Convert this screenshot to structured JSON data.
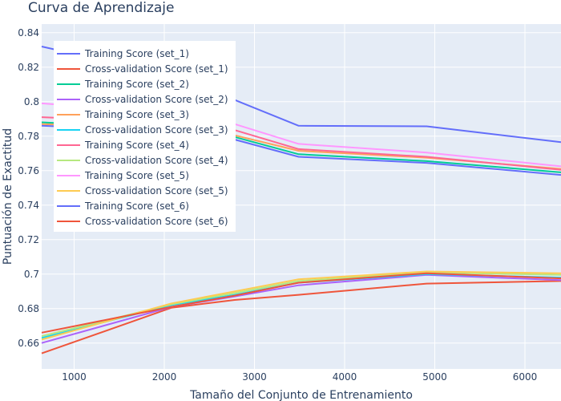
{
  "chart_data": {
    "type": "line",
    "title": "Curva de Aprendizaje",
    "xlabel": "Tamaño del Conjunto de Entrenamiento",
    "ylabel": "Puntuación de Exactitud",
    "xlim": [
      640,
      6400
    ],
    "ylim": [
      0.645,
      0.845
    ],
    "x_ticks": [
      1000,
      2000,
      3000,
      4000,
      5000,
      6000
    ],
    "x_tick_labels": [
      "1000",
      "2000",
      "3000",
      "4000",
      "5000",
      "6000"
    ],
    "y_ticks": [
      0.66,
      0.68,
      0.7,
      0.72,
      0.74,
      0.76,
      0.78,
      0.8,
      0.82,
      0.84
    ],
    "y_tick_labels": [
      "0.66",
      "0.68",
      "0.7",
      "0.72",
      "0.74",
      "0.76",
      "0.78",
      "0.8",
      "0.82",
      "0.84"
    ],
    "grid": true,
    "legend_position": "top-left",
    "x": [
      640,
      2080,
      2780,
      3490,
      4910,
      6400
    ],
    "series": [
      {
        "name": "Training Score (set_1)",
        "color": "#636efa",
        "values": [
          0.832,
          0.815,
          0.801,
          0.786,
          0.7857,
          0.7765
        ]
      },
      {
        "name": "Cross-validation Score (set_1)",
        "color": "#EF553B",
        "values": [
          0.654,
          0.6805,
          0.685,
          0.688,
          0.6945,
          0.696
        ]
      },
      {
        "name": "Training Score (set_2)",
        "color": "#00cc96",
        "values": [
          0.788,
          0.784,
          0.7795,
          0.7695,
          0.7655,
          0.759
        ]
      },
      {
        "name": "Cross-validation Score (set_2)",
        "color": "#ab63fa",
        "values": [
          0.66,
          0.681,
          0.687,
          0.6935,
          0.6995,
          0.6965
        ]
      },
      {
        "name": "Training Score (set_3)",
        "color": "#FFA15A",
        "values": [
          0.787,
          0.7845,
          0.7805,
          0.7715,
          0.7675,
          0.761
        ]
      },
      {
        "name": "Cross-validation Score (set_3)",
        "color": "#19d3f3",
        "values": [
          0.663,
          0.682,
          0.688,
          0.695,
          0.7,
          0.698
        ]
      },
      {
        "name": "Training Score (set_4)",
        "color": "#FF6692",
        "values": [
          0.791,
          0.788,
          0.7835,
          0.7725,
          0.768,
          0.7605
        ]
      },
      {
        "name": "Cross-validation Score (set_4)",
        "color": "#B6E880",
        "values": [
          0.664,
          0.6825,
          0.689,
          0.696,
          0.701,
          0.6995
        ]
      },
      {
        "name": "Training Score (set_5)",
        "color": "#FF97FF",
        "values": [
          0.799,
          0.7935,
          0.787,
          0.7755,
          0.7705,
          0.7625
        ]
      },
      {
        "name": "Cross-validation Score (set_5)",
        "color": "#FECB52",
        "values": [
          0.662,
          0.683,
          0.69,
          0.697,
          0.7015,
          0.7005
        ]
      },
      {
        "name": "Training Score (set_6)",
        "color": "#636efa",
        "values": [
          0.786,
          0.783,
          0.778,
          0.768,
          0.7645,
          0.7575
        ]
      },
      {
        "name": "Cross-validation Score (set_6)",
        "color": "#EF553B",
        "values": [
          0.666,
          0.681,
          0.6875,
          0.695,
          0.7005,
          0.6975
        ]
      }
    ]
  }
}
